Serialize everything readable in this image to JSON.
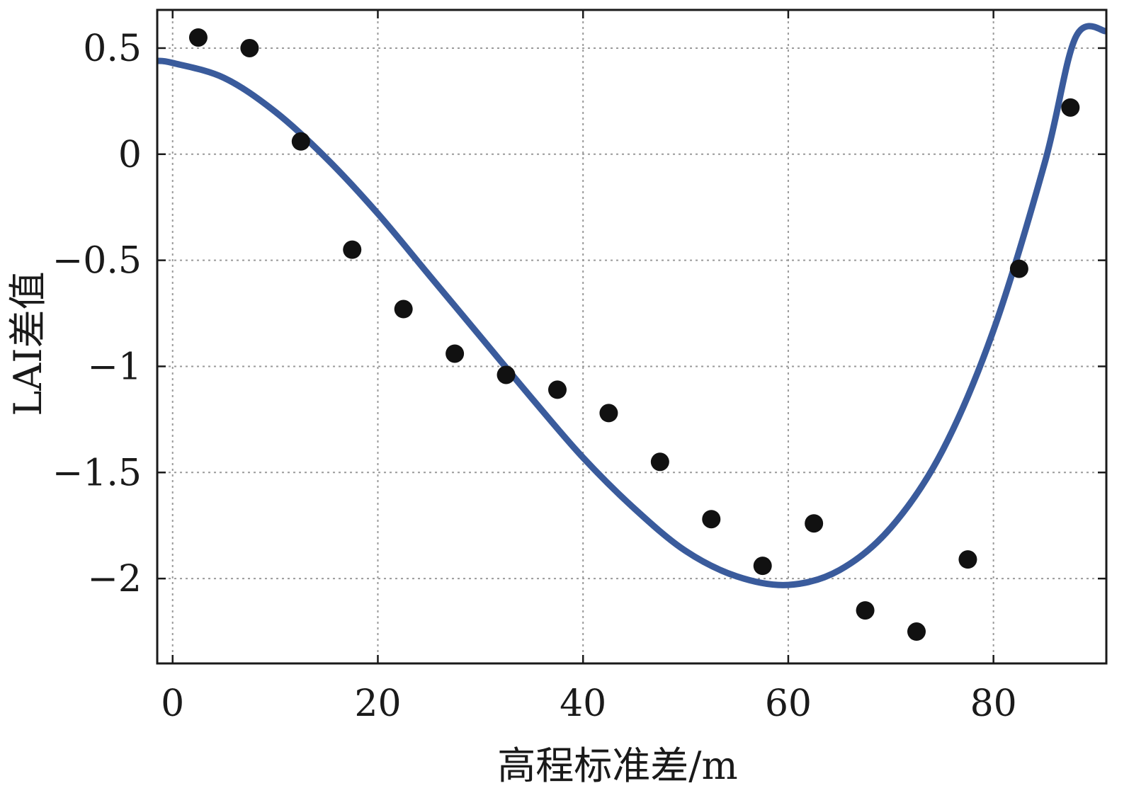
{
  "chart_data": {
    "type": "scatter",
    "title": "",
    "xlabel": "高程标准差/m",
    "ylabel": "LAI差值",
    "xlim": [
      -1.5,
      91
    ],
    "ylim": [
      -2.4,
      0.68
    ],
    "x_ticks": [
      0,
      20,
      40,
      60,
      80
    ],
    "x_tick_labels": [
      "0",
      "20",
      "40",
      "60",
      "80"
    ],
    "y_ticks": [
      0.5,
      0,
      -0.5,
      -1,
      -1.5,
      -2
    ],
    "y_tick_labels": [
      "0.5",
      "0",
      "−0.5",
      "−1",
      "−1.5",
      "−2"
    ],
    "grid": true,
    "series": [
      {
        "kind": "points",
        "color": "#111111",
        "x": [
          2.5,
          7.5,
          12.5,
          17.5,
          22.5,
          27.5,
          32.5,
          37.5,
          42.5,
          47.5,
          52.5,
          57.5,
          62.5,
          67.5,
          72.5,
          77.5,
          82.5,
          87.5
        ],
        "y": [
          0.55,
          0.5,
          0.06,
          -0.45,
          -0.73,
          -0.94,
          -1.04,
          -1.11,
          -1.22,
          -1.45,
          -1.72,
          -1.94,
          -1.74,
          -2.15,
          -2.25,
          -1.91,
          -0.54,
          0.22
        ]
      },
      {
        "kind": "fit-curve",
        "color": "#3a5b9c",
        "x": [
          -1.5,
          0,
          5,
          10,
          15,
          20,
          25,
          30,
          35,
          40,
          45,
          50,
          55,
          60,
          65,
          70,
          75,
          80,
          85,
          88,
          91
        ],
        "y": [
          0.44,
          0.43,
          0.36,
          0.2,
          -0.02,
          -0.28,
          -0.57,
          -0.86,
          -1.15,
          -1.43,
          -1.67,
          -1.87,
          -1.99,
          -2.03,
          -1.96,
          -1.76,
          -1.4,
          -0.83,
          -0.04,
          0.55,
          0.58
        ]
      }
    ]
  }
}
